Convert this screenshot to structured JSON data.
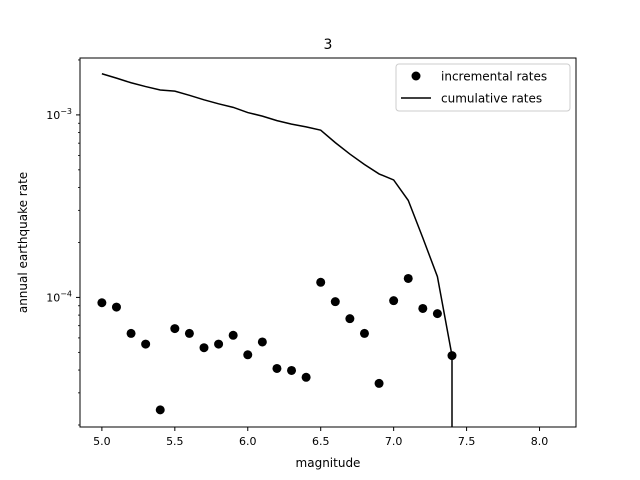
{
  "chart_data": {
    "type": "scatter",
    "title": "3",
    "xlabel": "magnitude",
    "ylabel": "annual earthquake rate",
    "xscale": "linear",
    "yscale": "log",
    "xlim": [
      4.85,
      8.25
    ],
    "ylim": [
      1.95e-05,
      0.00205
    ],
    "xticks": [
      5.0,
      5.5,
      6.0,
      6.5,
      7.0,
      7.5,
      8.0
    ],
    "xtick_labels": [
      "5.0",
      "5.5",
      "6.0",
      "6.5",
      "7.0",
      "7.5",
      "8.0"
    ],
    "yticks": [
      0.0001,
      0.001
    ],
    "ytick_base": "10",
    "ytick_exponents": [
      "−4",
      "−3"
    ],
    "grid": false,
    "legend_position": "top-right",
    "series": [
      {
        "name": "incremental rates",
        "kind": "scatter",
        "color": "#000000",
        "points": [
          [
            5.0,
            9.35e-05
          ],
          [
            5.1,
            8.85e-05
          ],
          [
            5.2,
            6.35e-05
          ],
          [
            5.3,
            5.55e-05
          ],
          [
            5.4,
            2.42e-05
          ],
          [
            5.5,
            6.75e-05
          ],
          [
            5.6,
            6.35e-05
          ],
          [
            5.7,
            5.3e-05
          ],
          [
            5.8,
            5.55e-05
          ],
          [
            5.9,
            6.2e-05
          ],
          [
            6.0,
            4.85e-05
          ],
          [
            6.1,
            5.7e-05
          ],
          [
            6.2,
            4.08e-05
          ],
          [
            6.3,
            3.98e-05
          ],
          [
            6.4,
            3.65e-05
          ],
          [
            6.5,
            0.000121
          ],
          [
            6.6,
            9.48e-05
          ],
          [
            6.7,
            7.65e-05
          ],
          [
            6.8,
            6.35e-05
          ],
          [
            6.9,
            3.38e-05
          ],
          [
            7.0,
            9.6e-05
          ],
          [
            7.1,
            0.000127
          ],
          [
            7.2,
            8.7e-05
          ],
          [
            7.3,
            8.15e-05
          ],
          [
            7.4,
            4.8e-05
          ]
        ]
      },
      {
        "name": "cumulative rates",
        "kind": "line",
        "color": "#000000",
        "points": [
          [
            5.0,
            0.00168
          ],
          [
            5.1,
            0.00159
          ],
          [
            5.2,
            0.0015
          ],
          [
            5.3,
            0.00143
          ],
          [
            5.4,
            0.00137
          ],
          [
            5.5,
            0.00135
          ],
          [
            5.6,
            0.00128
          ],
          [
            5.7,
            0.00121
          ],
          [
            5.8,
            0.00115
          ],
          [
            5.9,
            0.0011
          ],
          [
            6.0,
            0.00103
          ],
          [
            6.1,
            0.000985
          ],
          [
            6.2,
            0.00093
          ],
          [
            6.3,
            0.00089
          ],
          [
            6.4,
            0.00086
          ],
          [
            6.5,
            0.000825
          ],
          [
            6.6,
            0.000705
          ],
          [
            6.7,
            0.00061
          ],
          [
            6.8,
            0.000535
          ],
          [
            6.9,
            0.000475
          ],
          [
            7.0,
            0.00044
          ],
          [
            7.1,
            0.00034
          ],
          [
            7.2,
            0.000212
          ],
          [
            7.3,
            0.00013
          ],
          [
            7.4,
            4.8e-05
          ],
          [
            7.4,
            1e-05
          ]
        ]
      }
    ]
  }
}
